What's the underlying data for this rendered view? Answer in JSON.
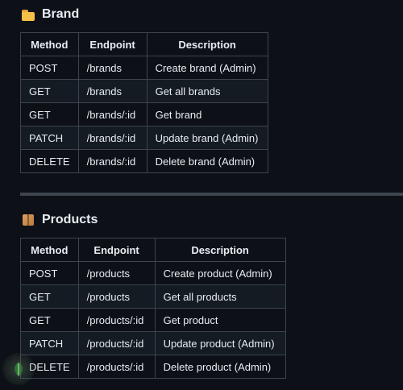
{
  "sections": [
    {
      "icon": "folder-icon",
      "title": "Brand",
      "headers": [
        "Method",
        "Endpoint",
        "Description"
      ],
      "rows": [
        [
          "POST",
          "/brands",
          "Create brand (Admin)"
        ],
        [
          "GET",
          "/brands",
          "Get all brands"
        ],
        [
          "GET",
          "/brands/:id",
          "Get brand"
        ],
        [
          "PATCH",
          "/brands/:id",
          "Update brand (Admin)"
        ],
        [
          "DELETE",
          "/brands/:id",
          "Delete brand (Admin)"
        ]
      ]
    },
    {
      "icon": "package-icon",
      "title": "Products",
      "headers": [
        "Method",
        "Endpoint",
        "Description"
      ],
      "rows": [
        [
          "POST",
          "/products",
          "Create product (Admin)"
        ],
        [
          "GET",
          "/products",
          "Get all products"
        ],
        [
          "GET",
          "/products/:id",
          "Get product"
        ],
        [
          "PATCH",
          "/products/:id",
          "Update product (Admin)"
        ],
        [
          "DELETE",
          "/products/:id",
          "Delete product (Admin)"
        ]
      ]
    }
  ],
  "badge": {
    "icon": "leaf-icon"
  }
}
